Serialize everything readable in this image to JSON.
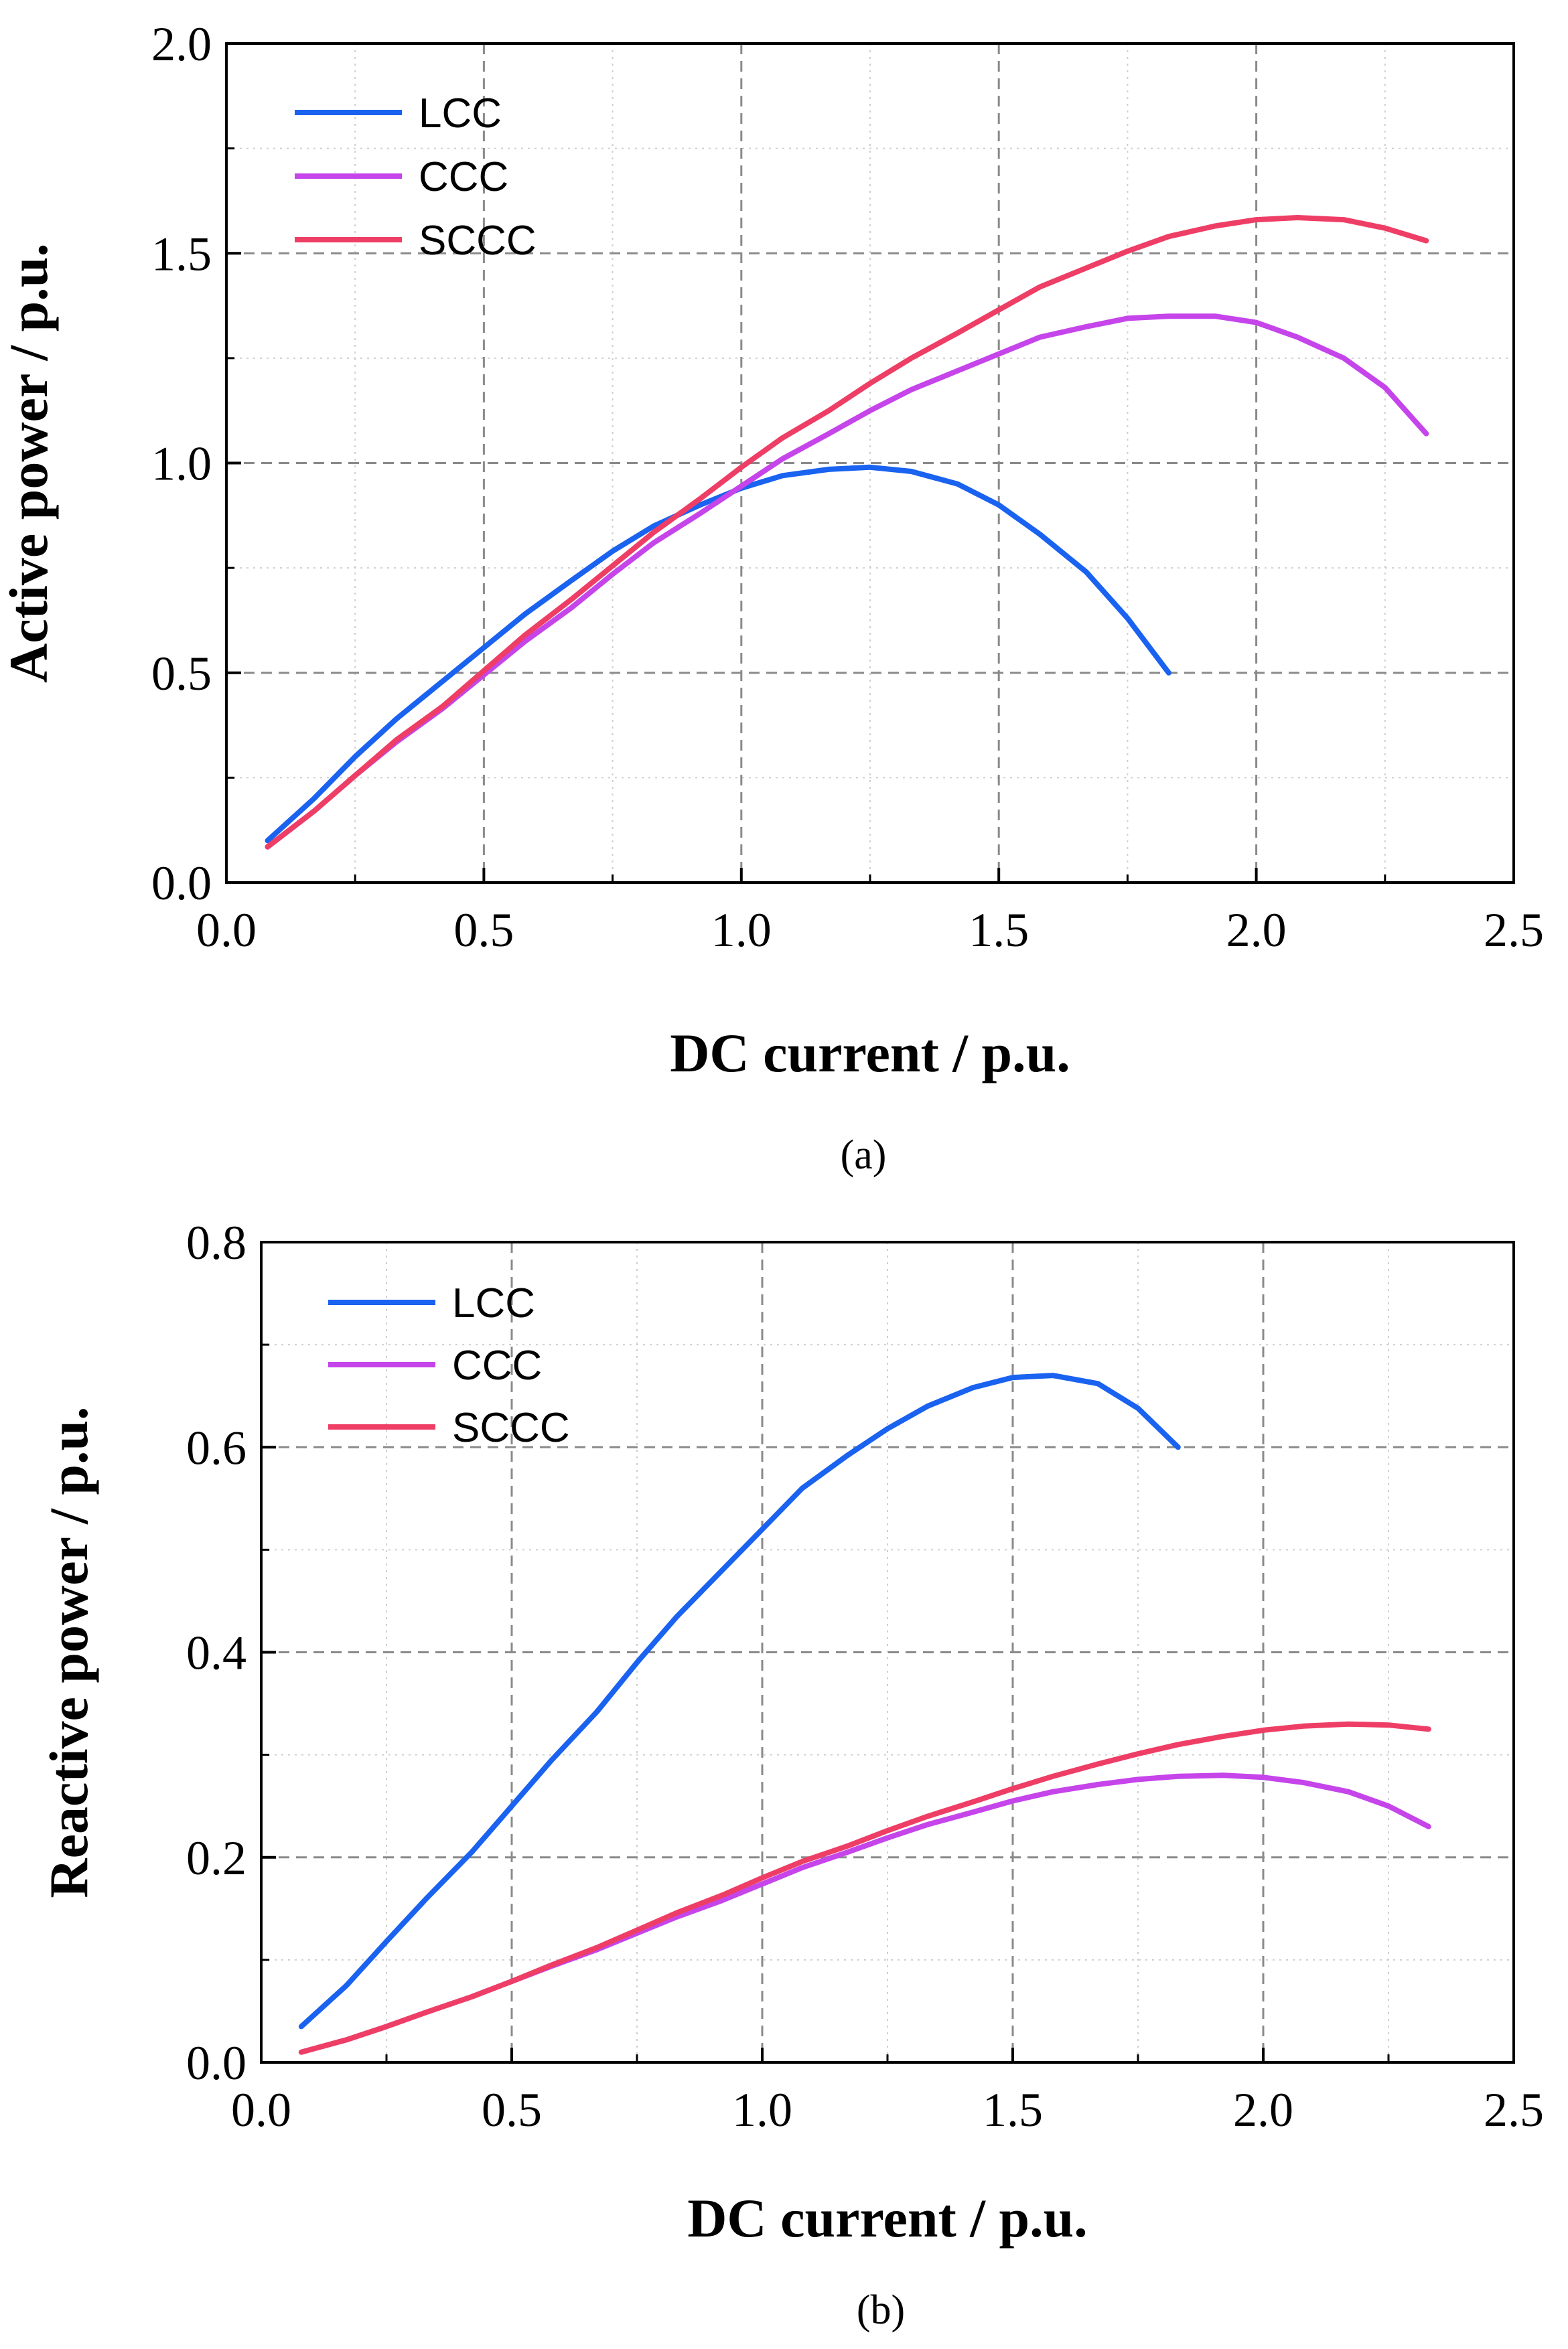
{
  "chart_data": [
    {
      "type": "line",
      "caption": "(a)",
      "xlabel": "DC current / p.u.",
      "ylabel": "Active power / p.u.",
      "xlim": [
        0.0,
        2.5
      ],
      "ylim": [
        0.0,
        2.0
      ],
      "xticks": [
        "0.0",
        "0.5",
        "1.0",
        "1.5",
        "2.0",
        "2.5"
      ],
      "yticks": [
        "0.0",
        "0.5",
        "1.0",
        "1.5",
        "2.0"
      ],
      "grid": true,
      "legend": "top-left",
      "series": [
        {
          "name": "LCC",
          "color": "#1a62f0",
          "x": [
            0.08,
            0.17,
            0.25,
            0.33,
            0.42,
            0.5,
            0.58,
            0.67,
            0.75,
            0.83,
            0.92,
            1.0,
            1.08,
            1.17,
            1.25,
            1.33,
            1.42,
            1.5,
            1.58,
            1.67,
            1.75,
            1.83
          ],
          "y": [
            0.1,
            0.2,
            0.3,
            0.39,
            0.48,
            0.56,
            0.64,
            0.72,
            0.79,
            0.85,
            0.9,
            0.94,
            0.97,
            0.985,
            0.99,
            0.98,
            0.95,
            0.9,
            0.83,
            0.74,
            0.63,
            0.5
          ]
        },
        {
          "name": "CCC",
          "color": "#c545ea",
          "x": [
            0.08,
            0.17,
            0.25,
            0.33,
            0.42,
            0.5,
            0.58,
            0.67,
            0.75,
            0.83,
            0.92,
            1.0,
            1.08,
            1.17,
            1.25,
            1.33,
            1.42,
            1.5,
            1.58,
            1.67,
            1.75,
            1.83,
            1.92,
            2.0,
            2.08,
            2.17,
            2.25,
            2.33
          ],
          "y": [
            0.085,
            0.17,
            0.255,
            0.335,
            0.415,
            0.495,
            0.575,
            0.655,
            0.735,
            0.81,
            0.88,
            0.945,
            1.01,
            1.07,
            1.125,
            1.175,
            1.22,
            1.26,
            1.3,
            1.325,
            1.345,
            1.35,
            1.35,
            1.335,
            1.3,
            1.25,
            1.18,
            1.07
          ]
        },
        {
          "name": "SCCC",
          "color": "#ee3e66",
          "x": [
            0.08,
            0.17,
            0.25,
            0.33,
            0.42,
            0.5,
            0.58,
            0.67,
            0.75,
            0.83,
            0.92,
            1.0,
            1.08,
            1.17,
            1.25,
            1.33,
            1.42,
            1.5,
            1.58,
            1.67,
            1.75,
            1.83,
            1.92,
            2.0,
            2.08,
            2.17,
            2.25,
            2.33
          ],
          "y": [
            0.085,
            0.17,
            0.255,
            0.34,
            0.42,
            0.505,
            0.59,
            0.675,
            0.755,
            0.835,
            0.915,
            0.99,
            1.06,
            1.125,
            1.19,
            1.25,
            1.31,
            1.365,
            1.42,
            1.465,
            1.505,
            1.54,
            1.565,
            1.58,
            1.585,
            1.58,
            1.56,
            1.53
          ]
        }
      ]
    },
    {
      "type": "line",
      "caption": "(b)",
      "xlabel": "DC current / p.u.",
      "ylabel": "Reactive power / p.u.",
      "xlim": [
        0.0,
        2.5
      ],
      "ylim": [
        0.0,
        0.8
      ],
      "xticks": [
        "0.0",
        "0.5",
        "1.0",
        "1.5",
        "2.0",
        "2.5"
      ],
      "yticks": [
        "0.0",
        "0.2",
        "0.4",
        "0.6",
        "0.8"
      ],
      "grid": true,
      "legend": "top-left",
      "series": [
        {
          "name": "LCC",
          "color": "#1a62f0",
          "x": [
            0.08,
            0.17,
            0.25,
            0.33,
            0.42,
            0.5,
            0.58,
            0.67,
            0.75,
            0.83,
            0.92,
            1.0,
            1.08,
            1.17,
            1.25,
            1.33,
            1.42,
            1.5,
            1.58,
            1.67,
            1.75,
            1.83
          ],
          "y": [
            0.035,
            0.075,
            0.118,
            0.16,
            0.205,
            0.25,
            0.295,
            0.342,
            0.39,
            0.435,
            0.48,
            0.52,
            0.56,
            0.592,
            0.618,
            0.64,
            0.658,
            0.668,
            0.67,
            0.662,
            0.638,
            0.6
          ]
        },
        {
          "name": "CCC",
          "color": "#c545ea",
          "x": [
            0.08,
            0.17,
            0.25,
            0.33,
            0.42,
            0.5,
            0.58,
            0.67,
            0.75,
            0.83,
            0.92,
            1.0,
            1.08,
            1.17,
            1.25,
            1.33,
            1.42,
            1.5,
            1.58,
            1.67,
            1.75,
            1.83,
            1.92,
            2.0,
            2.08,
            2.17,
            2.25,
            2.33
          ],
          "y": [
            0.01,
            0.022,
            0.035,
            0.049,
            0.064,
            0.079,
            0.094,
            0.11,
            0.126,
            0.142,
            0.158,
            0.174,
            0.19,
            0.205,
            0.219,
            0.232,
            0.244,
            0.255,
            0.264,
            0.271,
            0.276,
            0.279,
            0.28,
            0.278,
            0.273,
            0.264,
            0.25,
            0.23
          ]
        },
        {
          "name": "SCCC",
          "color": "#ee3e66",
          "x": [
            0.08,
            0.17,
            0.25,
            0.33,
            0.42,
            0.5,
            0.58,
            0.67,
            0.75,
            0.83,
            0.92,
            1.0,
            1.08,
            1.17,
            1.25,
            1.33,
            1.42,
            1.5,
            1.58,
            1.67,
            1.75,
            1.83,
            1.92,
            2.0,
            2.08,
            2.17,
            2.25,
            2.33
          ],
          "y": [
            0.01,
            0.022,
            0.035,
            0.049,
            0.064,
            0.079,
            0.095,
            0.112,
            0.129,
            0.146,
            0.163,
            0.18,
            0.196,
            0.211,
            0.226,
            0.24,
            0.254,
            0.267,
            0.279,
            0.291,
            0.301,
            0.31,
            0.318,
            0.324,
            0.328,
            0.33,
            0.329,
            0.325
          ]
        }
      ]
    }
  ]
}
